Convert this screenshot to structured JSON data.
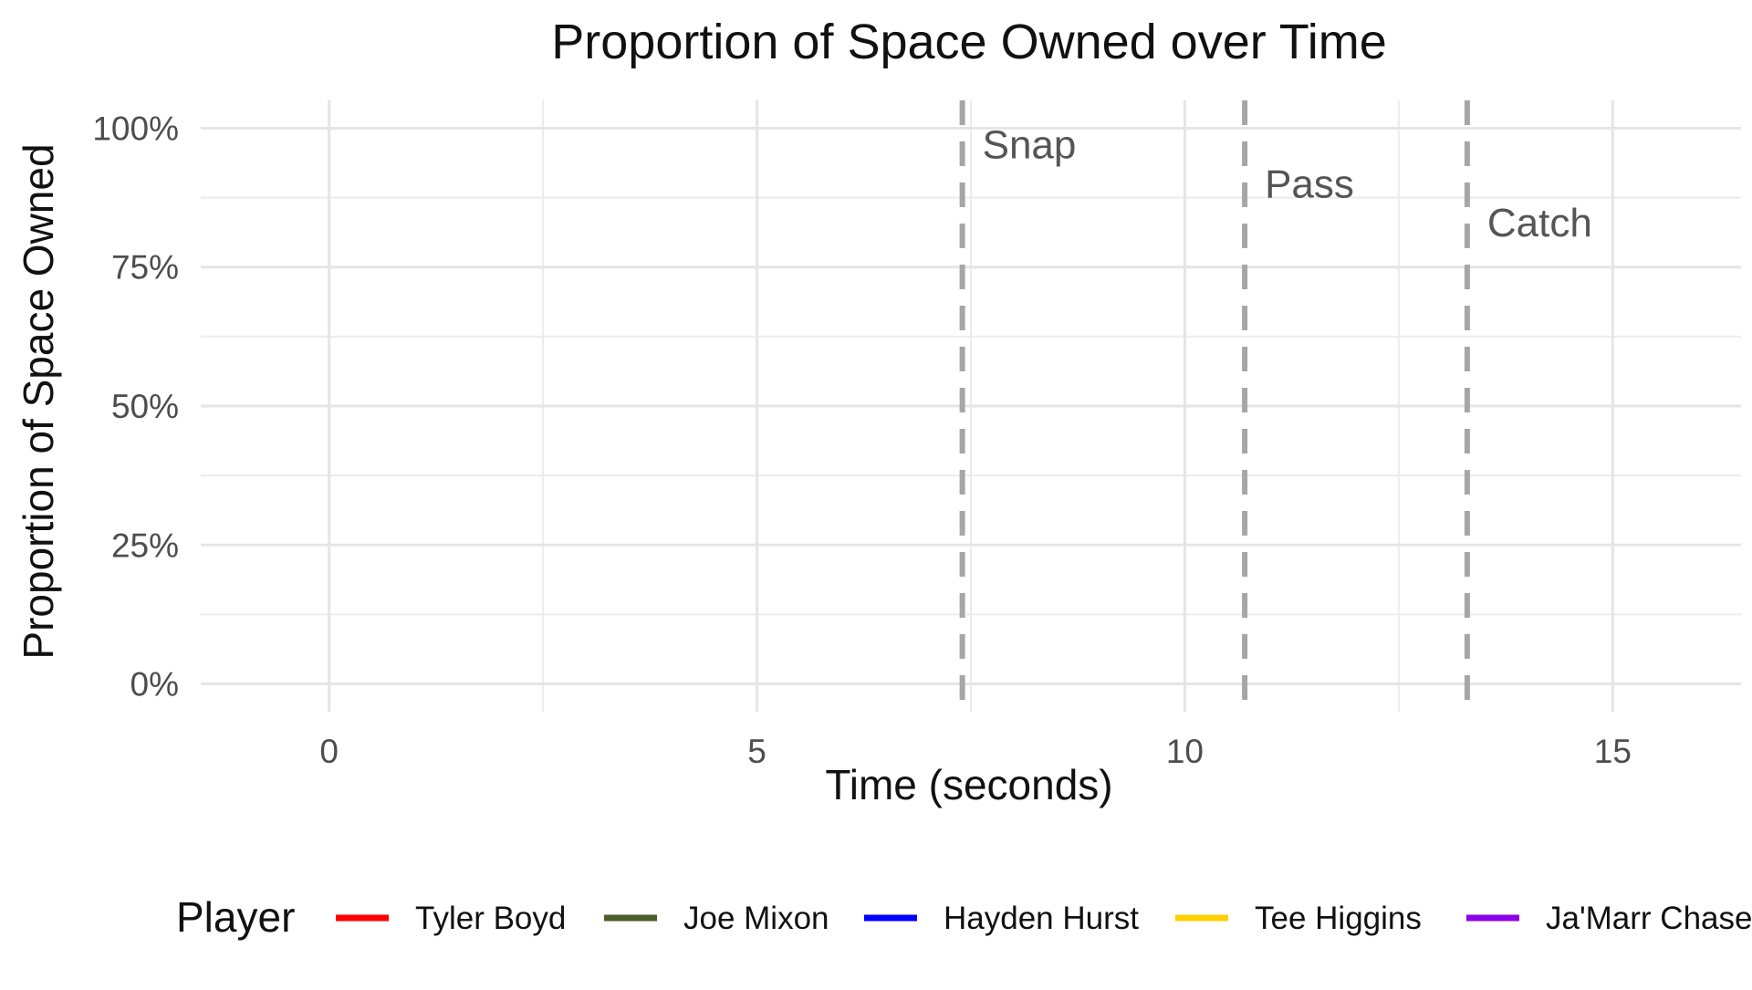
{
  "chart_data": {
    "type": "line",
    "title": "Proportion of Space Owned over Time",
    "xlabel": "Time (seconds)",
    "ylabel": "Proportion of Space Owned",
    "xlim": [
      -1.5,
      16.5
    ],
    "ylim": [
      -0.05,
      1.05
    ],
    "x_ticks": [
      0,
      5,
      10,
      15
    ],
    "x_tick_labels": [
      "0",
      "5",
      "10",
      "15"
    ],
    "y_ticks": [
      0,
      0.25,
      0.5,
      0.75,
      1.0
    ],
    "y_tick_labels": [
      "0%",
      "25%",
      "50%",
      "75%",
      "100%"
    ],
    "grid": true,
    "events": [
      {
        "label": "Snap",
        "x": 7.4,
        "label_y": 0.97
      },
      {
        "label": "Pass",
        "x": 10.7,
        "label_y": 0.9
      },
      {
        "label": "Catch",
        "x": 13.3,
        "label_y": 0.83
      }
    ],
    "legend": {
      "title": "Player",
      "position": "bottom",
      "items": [
        {
          "name": "Tyler Boyd",
          "color": "#ff0000"
        },
        {
          "name": "Joe Mixon",
          "color": "#4b5f2a"
        },
        {
          "name": "Hayden Hurst",
          "color": "#0000ff"
        },
        {
          "name": "Tee Higgins",
          "color": "#ffd000"
        },
        {
          "name": "Ja'Marr Chase",
          "color": "#8c00e8"
        }
      ]
    },
    "series": [
      {
        "name": "Tyler Boyd",
        "color": "#ff0000",
        "values": []
      },
      {
        "name": "Joe Mixon",
        "color": "#4b5f2a",
        "values": []
      },
      {
        "name": "Hayden Hurst",
        "color": "#0000ff",
        "values": []
      },
      {
        "name": "Tee Higgins",
        "color": "#ffd000",
        "values": []
      },
      {
        "name": "Ja'Marr Chase",
        "color": "#8c00e8",
        "values": []
      }
    ],
    "event_line_color": "#a6a6a6"
  }
}
